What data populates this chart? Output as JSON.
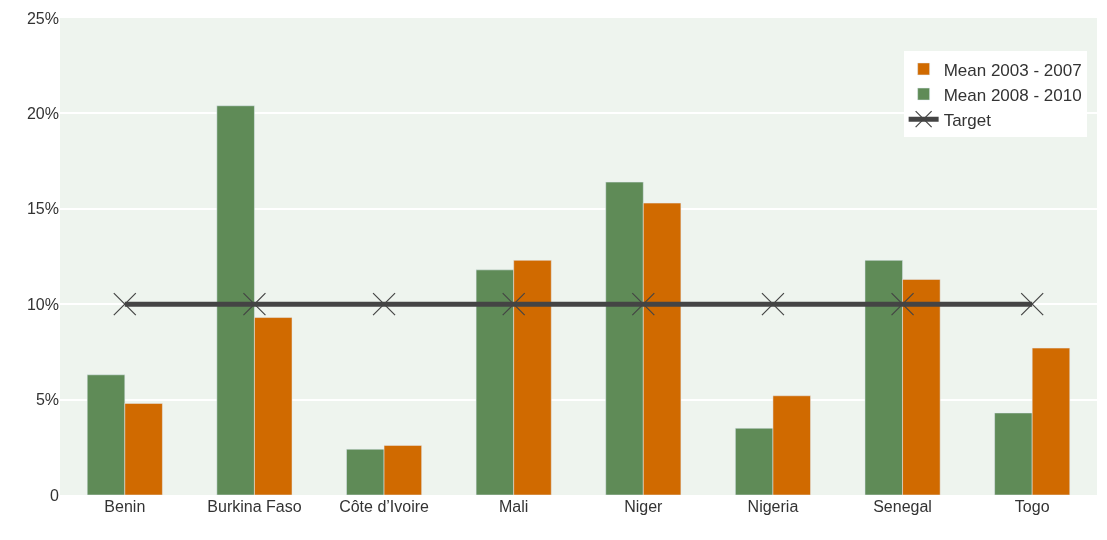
{
  "chart_data": {
    "type": "bar",
    "categories": [
      "Benin",
      "Burkina Faso",
      "Côte d’Ivoire",
      "Mali",
      "Niger",
      "Nigeria",
      "Senegal",
      "Togo"
    ],
    "series": [
      {
        "name": "Mean 2003 - 2007",
        "color": "#d06a00",
        "values": [
          4.8,
          9.3,
          2.6,
          12.3,
          15.3,
          5.2,
          11.3,
          7.7
        ]
      },
      {
        "name": "Mean 2008 - 2010",
        "color": "#5f8b57",
        "values": [
          6.3,
          20.4,
          2.4,
          11.8,
          16.4,
          3.5,
          12.3,
          4.3
        ]
      },
      {
        "name": "Target",
        "type": "line",
        "color": "#444444",
        "marker": "cross",
        "values": [
          10,
          10,
          10,
          10,
          10,
          10,
          10,
          10
        ]
      }
    ],
    "ylim": [
      0,
      25
    ],
    "yticks": [
      {
        "value": 0,
        "label": "0"
      },
      {
        "value": 5,
        "label": "5%"
      },
      {
        "value": 10,
        "label": "10%"
      },
      {
        "value": 15,
        "label": "15%"
      },
      {
        "value": 20,
        "label": "20%"
      },
      {
        "value": 25,
        "label": "25%"
      }
    ],
    "grid": "y",
    "legend": "top right"
  }
}
